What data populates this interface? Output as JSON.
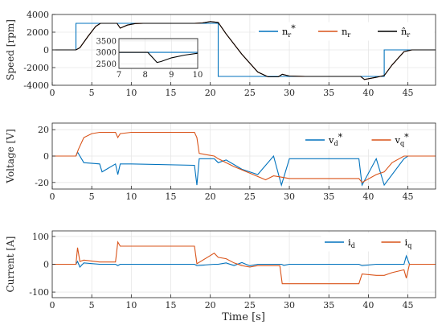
{
  "colors": {
    "reference": "#0072BD",
    "measured": "#D95319",
    "estimated": "#000000",
    "grid": "#E6E6E6",
    "axis": "#262626"
  },
  "xlabel": "Time [s]",
  "chart_data": [
    {
      "type": "line",
      "ylabel": "Speed [rpm]",
      "xlim": [
        0,
        48.5
      ],
      "ylim": [
        -4000,
        4000
      ],
      "xticks": [
        0,
        5,
        10,
        15,
        20,
        25,
        30,
        35,
        40,
        45
      ],
      "yticks": [
        -4000,
        -2000,
        0,
        2000,
        4000
      ],
      "grid": true,
      "legend": "top-right",
      "series": [
        {
          "name": "nr*",
          "label_main": "n",
          "label_sub": "r",
          "label_sup": "*",
          "color": "#0072BD",
          "x": [
            0,
            3,
            3,
            21,
            21,
            42,
            42,
            48.5
          ],
          "y": [
            0,
            0,
            3000,
            3000,
            -3000,
            -3000,
            0,
            0
          ]
        },
        {
          "name": "nr",
          "label_main": "n",
          "label_sub": "r",
          "label_sup": "",
          "color": "#D95319",
          "x": [
            0,
            3,
            3.5,
            4.5,
            5.5,
            6.1,
            8.2,
            8.6,
            9.5,
            10.5,
            11.5,
            18,
            19,
            20,
            21,
            22,
            24,
            26,
            27.3,
            28.6,
            29.1,
            30,
            32,
            39,
            39.5,
            41,
            42,
            43,
            44.5,
            45.5,
            48.5
          ],
          "y": [
            0,
            0,
            250,
            1500,
            2650,
            3000,
            3000,
            2450,
            2800,
            2970,
            3000,
            3000,
            3050,
            3200,
            3100,
            1800,
            -500,
            -2500,
            -3050,
            -3050,
            -2750,
            -2950,
            -3000,
            -3000,
            -3350,
            -3100,
            -2900,
            -1700,
            -200,
            0,
            0
          ]
        },
        {
          "name": "n̂r",
          "label_main": "n̂",
          "label_sub": "r",
          "label_sup": "",
          "color": "#000000",
          "x": [
            0,
            3,
            3.5,
            4.5,
            5.5,
            6.1,
            8.2,
            8.6,
            9.5,
            10.5,
            11.5,
            18,
            19,
            20,
            21,
            22,
            24,
            26,
            27.3,
            28.6,
            29.1,
            30,
            32,
            39,
            39.5,
            41,
            42,
            43,
            44.5,
            45.5,
            48.5
          ],
          "y": [
            0,
            0,
            250,
            1500,
            2650,
            3000,
            3000,
            2450,
            2800,
            2970,
            3000,
            3000,
            3050,
            3200,
            3100,
            1800,
            -500,
            -2500,
            -3050,
            -3050,
            -2750,
            -2950,
            -3000,
            -3000,
            -3350,
            -3100,
            -2900,
            -1700,
            -200,
            0,
            0
          ]
        }
      ],
      "inset": {
        "xlim": [
          7,
          10
        ],
        "ylim": [
          2300,
          3600
        ],
        "xticks": [
          7,
          8,
          9,
          10
        ],
        "yticks": [
          2500,
          3000,
          3500
        ],
        "series": [
          {
            "name": "nr*",
            "color": "#0072BD",
            "x": [
              7,
              10
            ],
            "y": [
              3000,
              3000
            ]
          },
          {
            "name": "n̂r",
            "color": "#000000",
            "x": [
              7,
              8.1,
              8.3,
              8.45,
              8.6,
              9,
              9.5,
              10
            ],
            "y": [
              3000,
              3000,
              2750,
              2560,
              2600,
              2760,
              2880,
              2960
            ]
          }
        ]
      }
    },
    {
      "type": "line",
      "ylabel": "Voltage [V]",
      "xlim": [
        0,
        48.5
      ],
      "ylim": [
        -25,
        25
      ],
      "xticks": [
        0,
        5,
        10,
        15,
        20,
        25,
        30,
        35,
        40,
        45
      ],
      "yticks": [
        -20,
        0,
        20
      ],
      "grid": true,
      "legend": "top-right",
      "series": [
        {
          "name": "vd*",
          "label_main": "v",
          "label_sub": "d",
          "label_sup": "*",
          "color": "#0072BD",
          "x": [
            0,
            3,
            3.2,
            4,
            6,
            6.3,
            8,
            8.3,
            8.6,
            10,
            18,
            18.3,
            18.6,
            20.5,
            21,
            22,
            24,
            26,
            28,
            29,
            30,
            38.8,
            39.2,
            41,
            42,
            44.5,
            45,
            48.5
          ],
          "y": [
            0,
            0,
            3,
            -5,
            -6,
            -12,
            -6,
            -14,
            -6,
            -6,
            -7,
            -22,
            -2,
            -2,
            -5,
            -3,
            -10,
            -14,
            0,
            -22,
            -2,
            -2,
            -22,
            -2,
            -22,
            -2,
            0,
            0
          ]
        },
        {
          "name": "vq*",
          "label_main": "v",
          "label_sub": "q",
          "label_sup": "*",
          "color": "#D95319",
          "x": [
            0,
            3,
            3.3,
            4,
            5,
            6,
            8,
            8.3,
            8.6,
            10,
            18,
            18.3,
            18.6,
            20.5,
            21,
            23,
            25,
            27,
            28,
            29,
            30,
            38.8,
            39.2,
            41,
            42,
            43,
            44.5,
            45,
            48.5
          ],
          "y": [
            0,
            0,
            5,
            14,
            17,
            18,
            18,
            14,
            17,
            18,
            18,
            14,
            2,
            0,
            -2,
            -8,
            -13,
            -18,
            -15,
            -16,
            -17,
            -17,
            -20,
            -14,
            -12,
            -5,
            0,
            0,
            0
          ]
        }
      ]
    },
    {
      "type": "line",
      "ylabel": "Current [A]",
      "xlim": [
        0,
        48.5
      ],
      "ylim": [
        -120,
        120
      ],
      "xticks": [
        0,
        5,
        10,
        15,
        20,
        25,
        30,
        35,
        40,
        45
      ],
      "yticks": [
        -100,
        0,
        100
      ],
      "grid": true,
      "legend": "top-right",
      "series": [
        {
          "name": "id",
          "label_main": "i",
          "label_sub": "d",
          "label_sup": "",
          "color": "#0072BD",
          "x": [
            0,
            3,
            3.2,
            3.5,
            4,
            6,
            8,
            8.3,
            8.6,
            18,
            18.3,
            20.5,
            21,
            22,
            23,
            24,
            25,
            26,
            29,
            29.3,
            30,
            38.8,
            39.2,
            41,
            44.5,
            44.8,
            45.2,
            48.5
          ],
          "y": [
            0,
            0,
            10,
            -10,
            5,
            0,
            0,
            -5,
            0,
            0,
            -5,
            0,
            0,
            5,
            -5,
            6,
            -6,
            0,
            0,
            -4,
            0,
            0,
            -5,
            0,
            0,
            30,
            0,
            0
          ]
        },
        {
          "name": "iq",
          "label_main": "i",
          "label_sub": "q",
          "label_sup": "",
          "color": "#D95319",
          "x": [
            0,
            3,
            3.2,
            3.5,
            4,
            6,
            8,
            8.3,
            8.6,
            10,
            18,
            18.3,
            20.5,
            21,
            22,
            23,
            24,
            25,
            26,
            28.8,
            29.1,
            30,
            38.8,
            39.2,
            41,
            42,
            43,
            44.5,
            44.8,
            45.2,
            48.5
          ],
          "y": [
            0,
            0,
            60,
            10,
            15,
            8,
            8,
            80,
            65,
            65,
            65,
            2,
            40,
            25,
            20,
            5,
            -5,
            -10,
            -5,
            -5,
            -70,
            -70,
            -70,
            -35,
            -40,
            -40,
            -30,
            -20,
            -50,
            0,
            0
          ]
        }
      ]
    }
  ]
}
